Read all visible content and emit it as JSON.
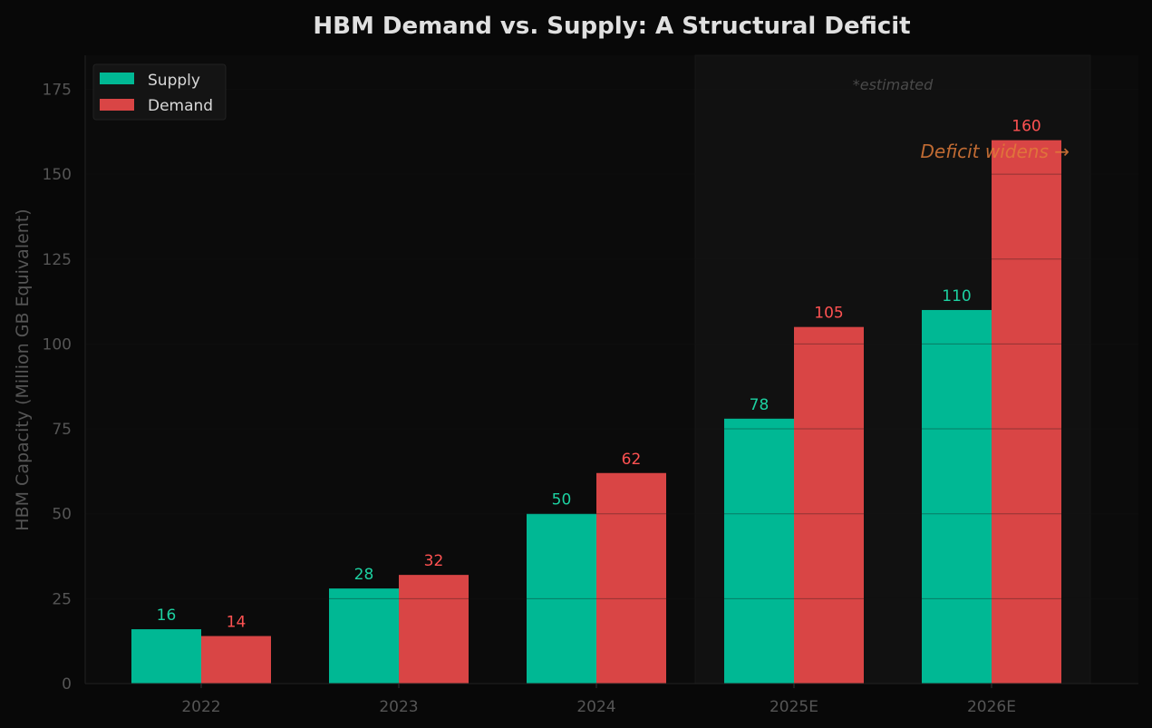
{
  "chart_data": {
    "type": "bar",
    "title": "HBM Demand vs. Supply: A Structural Deficit",
    "xlabel": "",
    "ylabel": "HBM Capacity (Million GB Equivalent)",
    "categories": [
      "2022",
      "2023",
      "2024",
      "2025E",
      "2026E"
    ],
    "series": [
      {
        "name": "Supply",
        "values": [
          16,
          28,
          50,
          78,
          110
        ],
        "color": "#00b894",
        "label_color": "#1dd1a1"
      },
      {
        "name": "Demand",
        "values": [
          14,
          32,
          62,
          105,
          160
        ],
        "color": "#d94545",
        "label_color": "#ff5252"
      }
    ],
    "ylim": [
      0,
      185
    ],
    "yticks": [
      0,
      25,
      50,
      75,
      100,
      125,
      150,
      175
    ],
    "grid": true,
    "legend": "top-left",
    "shaded_region": {
      "from_category": "2025E",
      "to_category": "2026E"
    },
    "annotations": {
      "estimated": "*estimated",
      "deficit": "Deficit widens →",
      "deficit_color": "#e07b39"
    }
  }
}
